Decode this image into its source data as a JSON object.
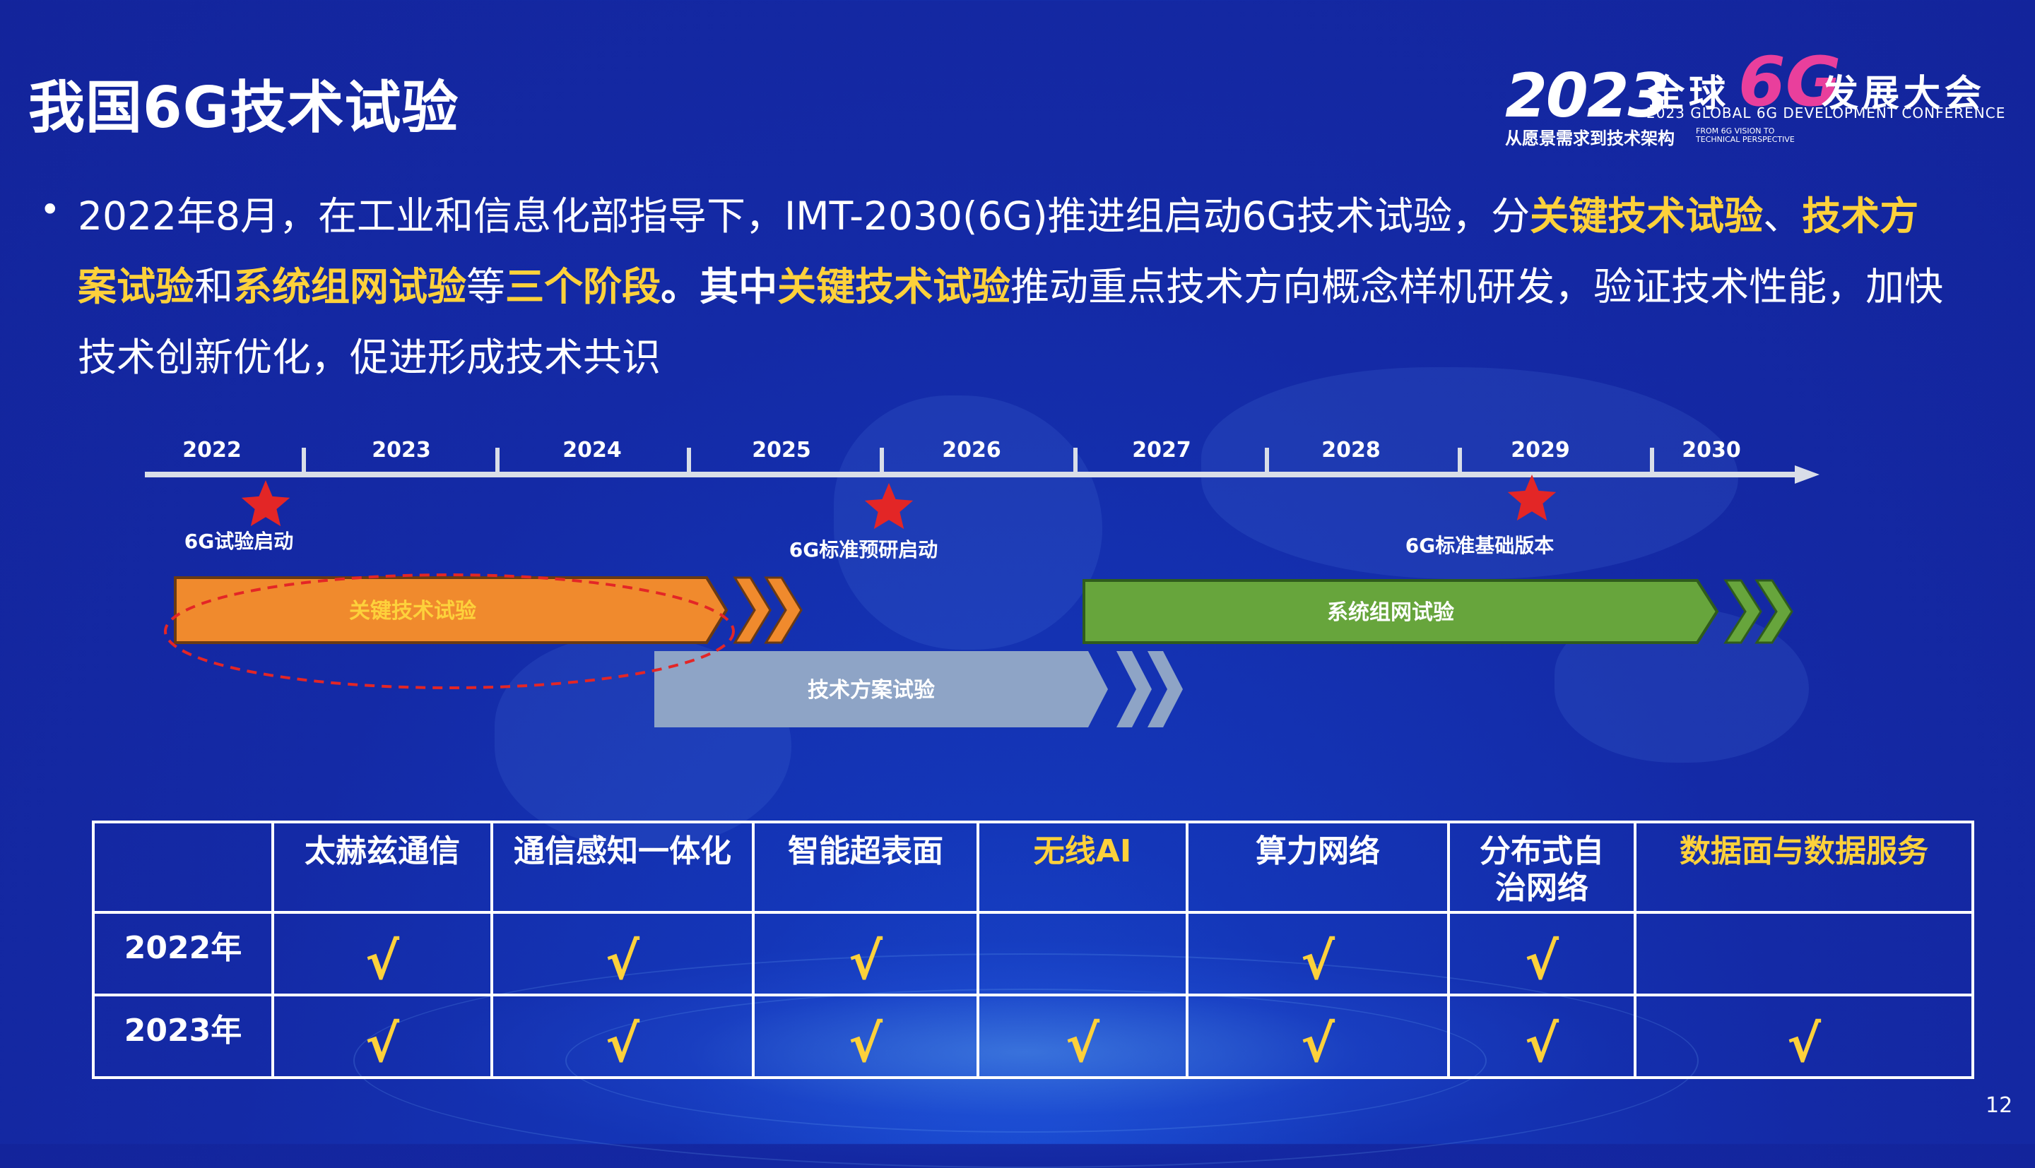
{
  "title": "我国6G技术试验",
  "logo": {
    "year": "2023",
    "quanqiu": "全球",
    "six_g": "6G",
    "fazhan": "发展大会",
    "english": "2023 GLOBAL 6G DEVELOPMENT CONFERENCE",
    "cn_sub": "从愿景需求到技术架构",
    "en_sub": "FROM 6G VISION TO TECHNICAL PERSPECTIVE"
  },
  "paragraph": {
    "p1": "2022年8月，在工业和信息化部指导下，IMT-2030(6G)推进组启动6G技术试验，分",
    "p2": "关键技术试验",
    "p3": "、",
    "p4": "技术方案试验",
    "p5": "和",
    "p6": "系统组网试验",
    "p7": "等",
    "p8": "三个阶段",
    "p9": "。其中",
    "p10": "关键技术试验",
    "p11": "推动重点技术方向概念样机研发，验证技术性能，加快技术创新优化，促进形成技术共识"
  },
  "timeline": {
    "years": [
      "2022",
      "2023",
      "2024",
      "2025",
      "2026",
      "2027",
      "2028",
      "2029",
      "2030"
    ],
    "milestones": [
      {
        "label": "6G试验启动",
        "year": 2022.3
      },
      {
        "label": "6G标准预研启动",
        "year": 2025.4
      },
      {
        "label": "6G标准基础版本",
        "year": 2029.0
      }
    ],
    "phases": [
      {
        "label": "关键技术试验",
        "start": 2022.0,
        "end": 2024.9,
        "color": "#f08a2d",
        "text_color": "#fdd13b"
      },
      {
        "label": "技术方案试验",
        "start": 2024.7,
        "end": 2026.6,
        "color": "#8ea4c6",
        "text_color": "#ffffff"
      },
      {
        "label": "系统组网试验",
        "start": 2026.9,
        "end": 2030.3,
        "color": "#67a53c",
        "text_color": "#ffffff"
      }
    ]
  },
  "matrix": {
    "headers": [
      "",
      "太赫兹通信",
      "通信感知一体化",
      "智能超表面",
      "无线AI",
      "算力网络",
      "分布式自治网络",
      "数据面与数据服务"
    ],
    "header_highlight": [
      false,
      false,
      false,
      false,
      true,
      false,
      false,
      true
    ],
    "rows": [
      {
        "year": "2022年",
        "cells": [
          "√",
          "√",
          "√",
          "",
          "√",
          "√",
          ""
        ]
      },
      {
        "year": "2023年",
        "cells": [
          "√",
          "√",
          "√",
          "√",
          "√",
          "√",
          "√"
        ]
      }
    ]
  },
  "page_number": "12"
}
